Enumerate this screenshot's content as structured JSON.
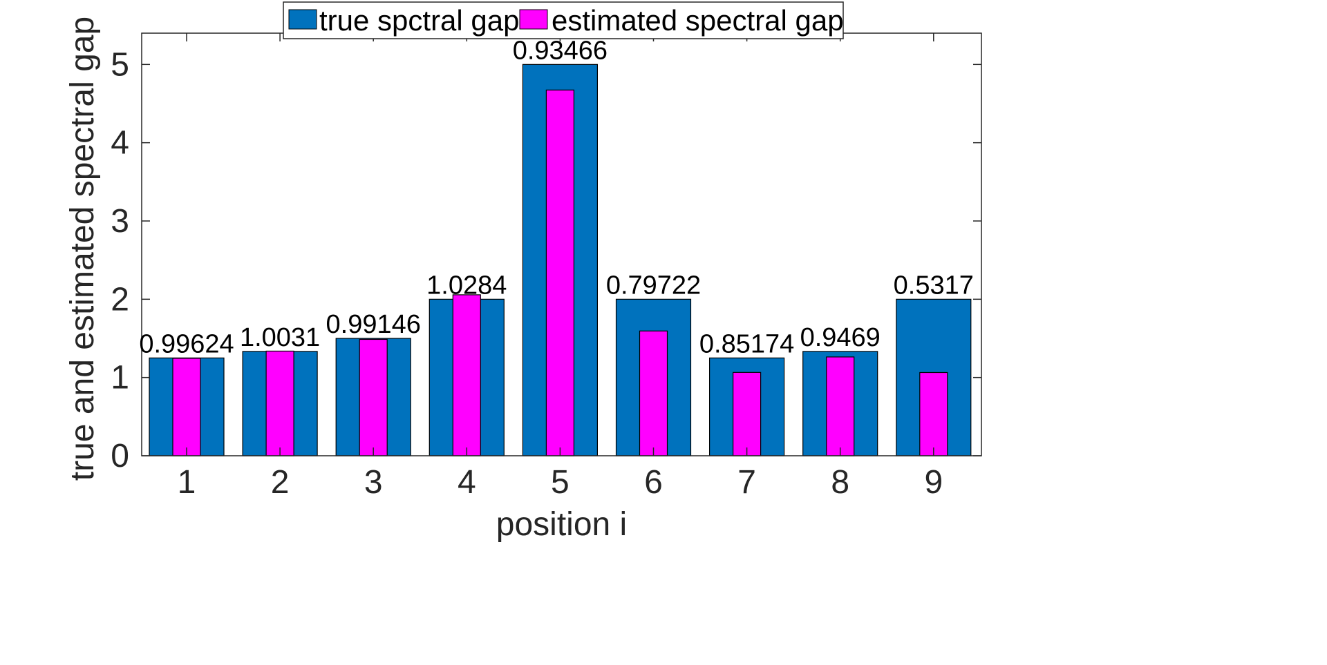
{
  "chart_data": {
    "type": "bar",
    "categories": [
      "1",
      "2",
      "3",
      "4",
      "5",
      "6",
      "7",
      "8",
      "9"
    ],
    "series": [
      {
        "name": "true spctral gap",
        "color": "#0072BD",
        "values": [
          1.25,
          1.3333,
          1.5,
          2.0,
          5.0,
          2.0,
          1.25,
          1.3333,
          2.0
        ]
      },
      {
        "name": "estimated spectral gap",
        "color": "#FF00FF",
        "values": [
          1.2453,
          1.3374,
          1.4872,
          2.0568,
          4.6733,
          1.5944,
          1.0647,
          1.2625,
          1.0634
        ]
      }
    ],
    "data_labels": [
      "0.99624",
      "1.0031",
      "0.99146",
      "1.0284",
      "0.93466",
      "0.79722",
      "0.85174",
      "0.9469",
      "0.5317"
    ],
    "xlabel": "position i",
    "ylabel": "true and estimated spectral gap",
    "ylim": [
      0,
      5.4
    ],
    "yticks": [
      "0",
      "1",
      "2",
      "3",
      "4",
      "5"
    ],
    "grid": false,
    "legend_placement": "top, outside, horizontal"
  }
}
